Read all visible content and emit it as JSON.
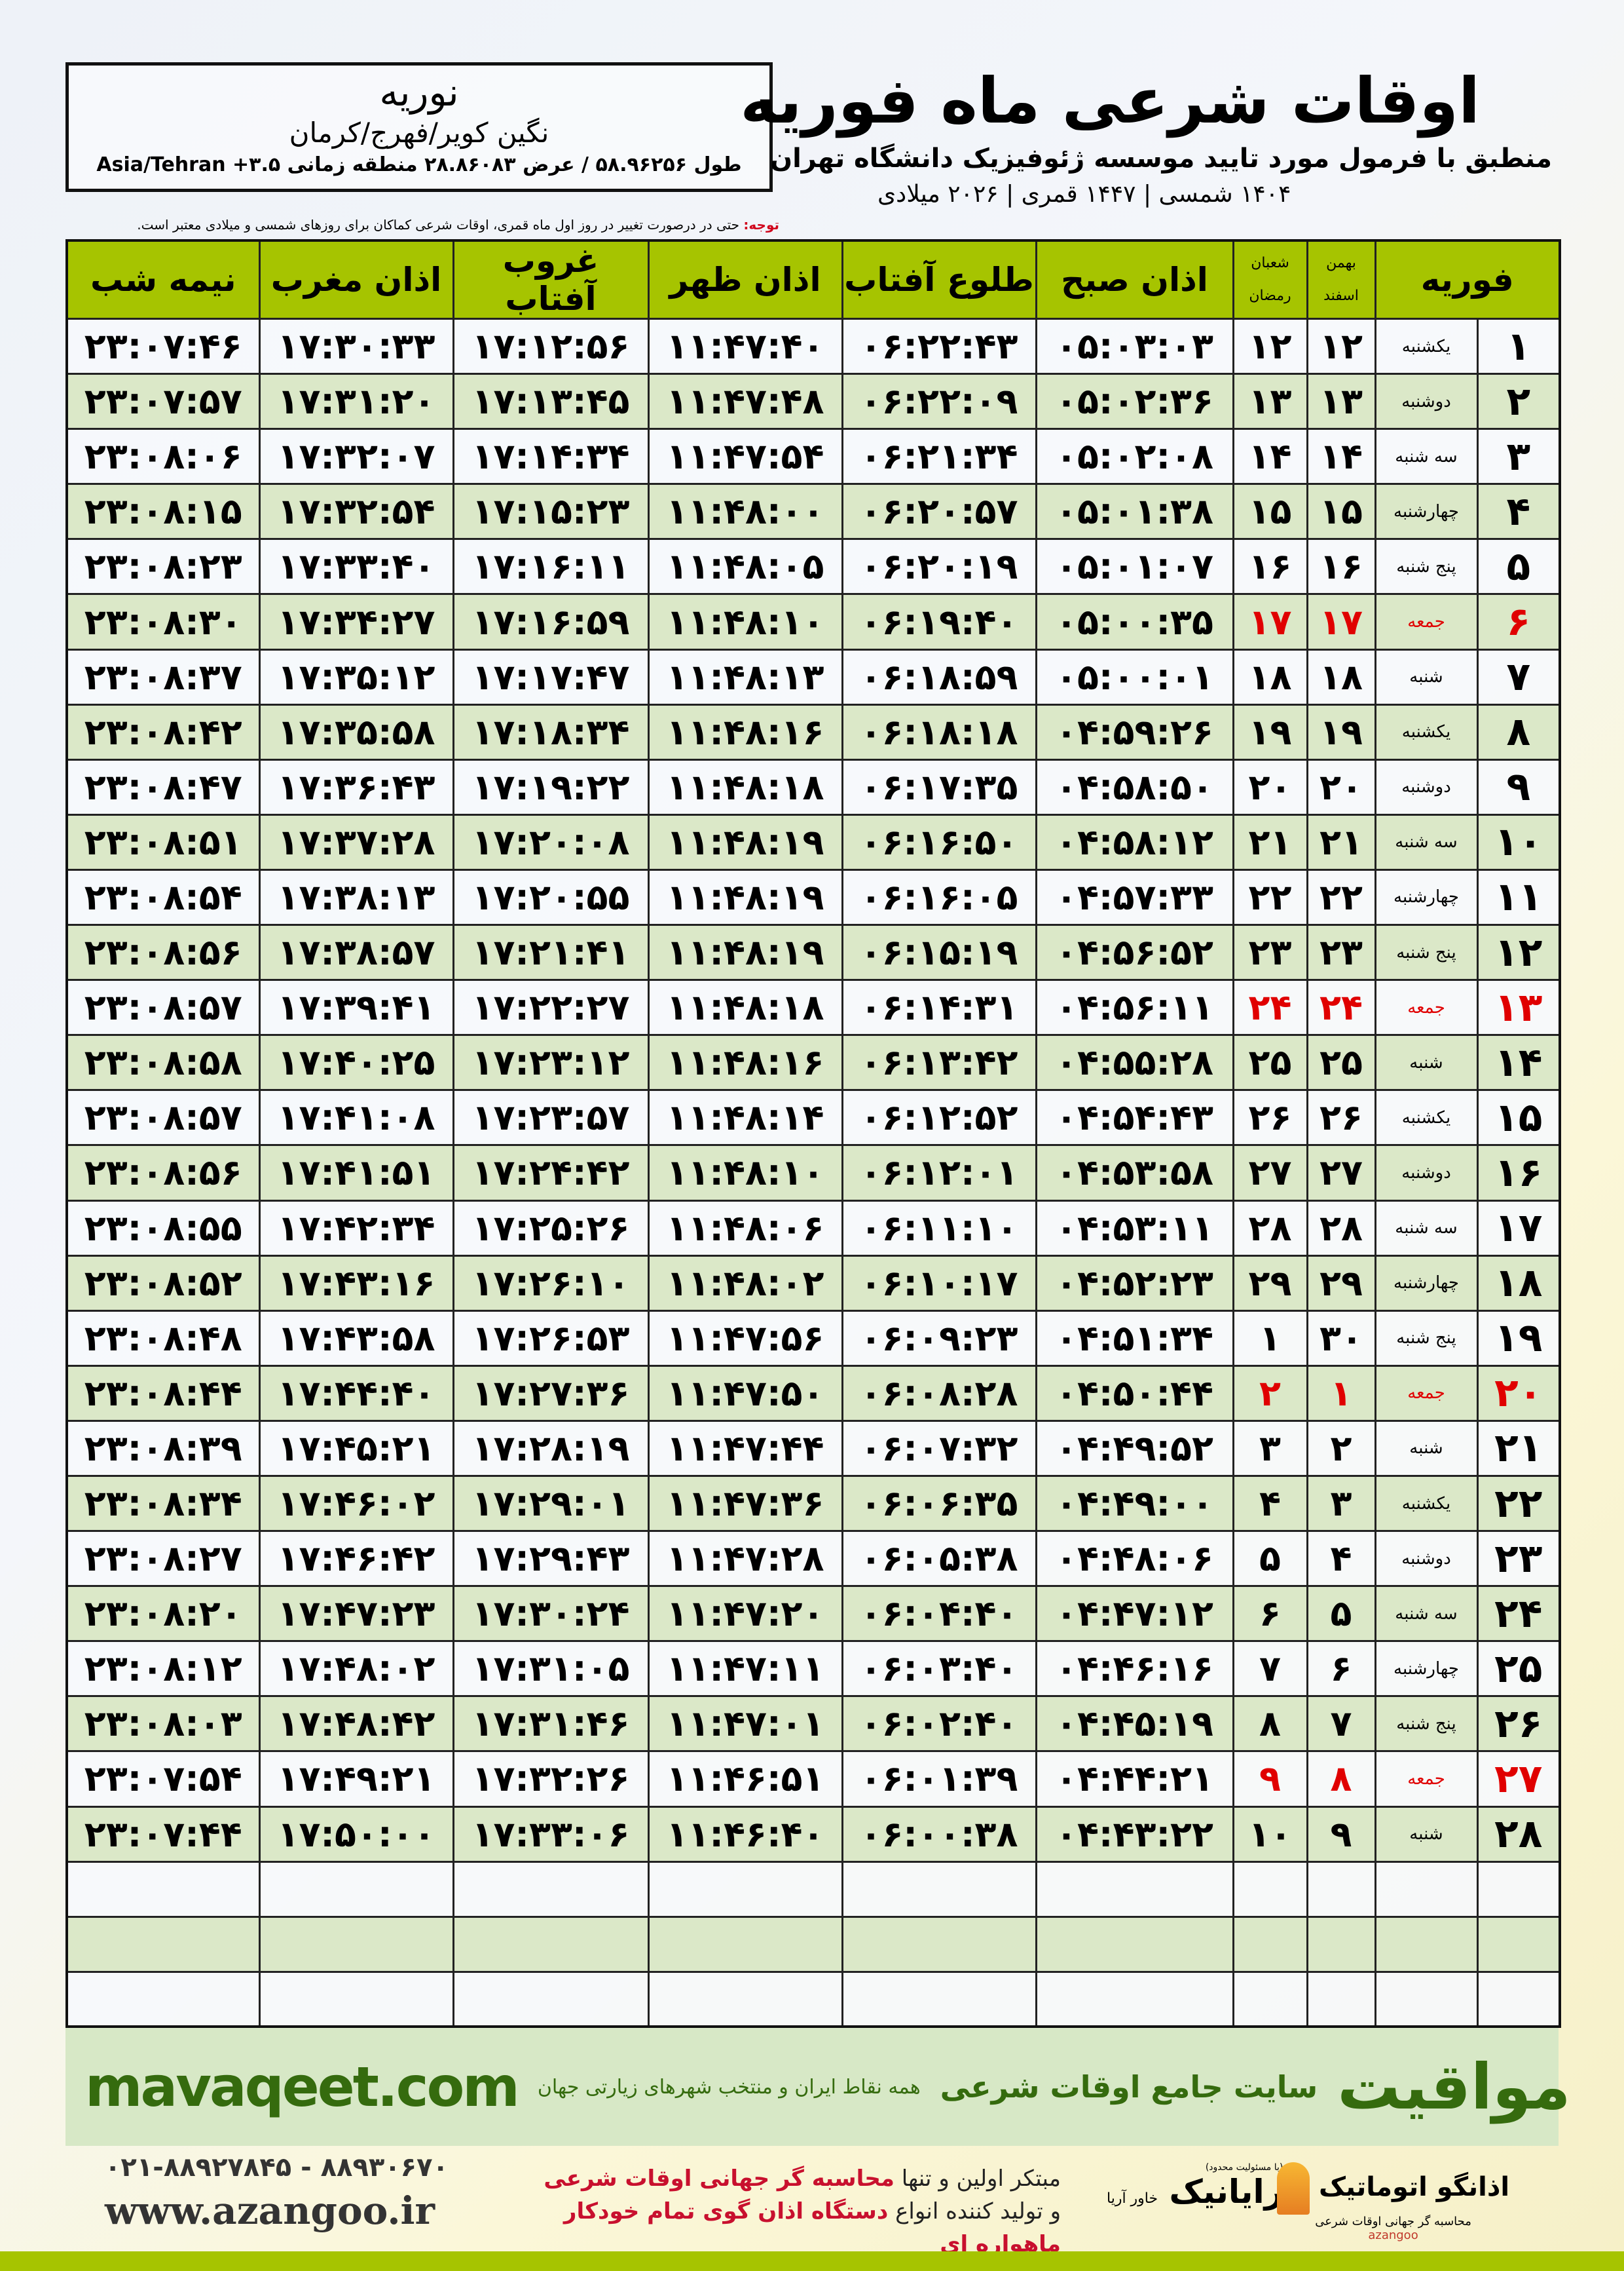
{
  "header": {
    "title": "اوقات شرعی ماه فوریه",
    "subtitle": "منطبق با فرمول مورد تایید موسسه ژئوفیزیک دانشگاه تهران",
    "years": "۱۴۰۴ شمسی | ۱۴۴۷ قمری | ۲۰۲۶ میلادی"
  },
  "location": {
    "city": "نوریه",
    "region": "نگین کویر/فهرج/کرمان",
    "coords": "طول ۵۸.۹۶۲۵۶ / عرض ۲۸.۸۶۰۸۳ منطقه زمانی ۳.۵+ Asia/Tehran"
  },
  "note": {
    "label": "توجه:",
    "text": " حتی در درصورت تغییر در روز اول ماه قمری، اوقات شرعی کماکان برای روزهای شمسی و میلادی معتبر است."
  },
  "colors": {
    "header": "#a6c400",
    "row_alt": "#dbe8c8",
    "holiday": "#e00000",
    "brand": "#356b0e"
  },
  "table": {
    "headers": {
      "month": "فوریه",
      "solar_top": "بهمن",
      "solar_bottom": "اسفند",
      "lunar_top": "شعبان",
      "lunar_bottom": "رمضان",
      "fajr": "اذان صبح",
      "sunrise": "طلوع آفتاب",
      "dhuhr": "اذان ظهر",
      "sunset": "غروب آفتاب",
      "maghrib": "اذان مغرب",
      "midnight": "نیمه شب"
    },
    "rows": [
      {
        "day": "۱",
        "weekday": "یکشنبه",
        "solar": "۱۲",
        "lunar": "۱۲",
        "fajr": "۰۵:۰۳:۰۳",
        "sunrise": "۰۶:۲۲:۴۳",
        "dhuhr": "۱۱:۴۷:۴۰",
        "sunset": "۱۷:۱۲:۵۶",
        "maghrib": "۱۷:۳۰:۳۳",
        "midnight": "۲۳:۰۷:۴۶",
        "holiday": false
      },
      {
        "day": "۲",
        "weekday": "دوشنبه",
        "solar": "۱۳",
        "lunar": "۱۳",
        "fajr": "۰۵:۰۲:۳۶",
        "sunrise": "۰۶:۲۲:۰۹",
        "dhuhr": "۱۱:۴۷:۴۸",
        "sunset": "۱۷:۱۳:۴۵",
        "maghrib": "۱۷:۳۱:۲۰",
        "midnight": "۲۳:۰۷:۵۷",
        "holiday": false
      },
      {
        "day": "۳",
        "weekday": "سه شنبه",
        "solar": "۱۴",
        "lunar": "۱۴",
        "fajr": "۰۵:۰۲:۰۸",
        "sunrise": "۰۶:۲۱:۳۴",
        "dhuhr": "۱۱:۴۷:۵۴",
        "sunset": "۱۷:۱۴:۳۴",
        "maghrib": "۱۷:۳۲:۰۷",
        "midnight": "۲۳:۰۸:۰۶",
        "holiday": false
      },
      {
        "day": "۴",
        "weekday": "چهارشنبه",
        "solar": "۱۵",
        "lunar": "۱۵",
        "fajr": "۰۵:۰۱:۳۸",
        "sunrise": "۰۶:۲۰:۵۷",
        "dhuhr": "۱۱:۴۸:۰۰",
        "sunset": "۱۷:۱۵:۲۳",
        "maghrib": "۱۷:۳۲:۵۴",
        "midnight": "۲۳:۰۸:۱۵",
        "holiday": false
      },
      {
        "day": "۵",
        "weekday": "پنج شنبه",
        "solar": "۱۶",
        "lunar": "۱۶",
        "fajr": "۰۵:۰۱:۰۷",
        "sunrise": "۰۶:۲۰:۱۹",
        "dhuhr": "۱۱:۴۸:۰۵",
        "sunset": "۱۷:۱۶:۱۱",
        "maghrib": "۱۷:۳۳:۴۰",
        "midnight": "۲۳:۰۸:۲۳",
        "holiday": false
      },
      {
        "day": "۶",
        "weekday": "جمعه",
        "solar": "۱۷",
        "lunar": "۱۷",
        "fajr": "۰۵:۰۰:۳۵",
        "sunrise": "۰۶:۱۹:۴۰",
        "dhuhr": "۱۱:۴۸:۱۰",
        "sunset": "۱۷:۱۶:۵۹",
        "maghrib": "۱۷:۳۴:۲۷",
        "midnight": "۲۳:۰۸:۳۰",
        "holiday": true
      },
      {
        "day": "۷",
        "weekday": "شنبه",
        "solar": "۱۸",
        "lunar": "۱۸",
        "fajr": "۰۵:۰۰:۰۱",
        "sunrise": "۰۶:۱۸:۵۹",
        "dhuhr": "۱۱:۴۸:۱۳",
        "sunset": "۱۷:۱۷:۴۷",
        "maghrib": "۱۷:۳۵:۱۲",
        "midnight": "۲۳:۰۸:۳۷",
        "holiday": false
      },
      {
        "day": "۸",
        "weekday": "یکشنبه",
        "solar": "۱۹",
        "lunar": "۱۹",
        "fajr": "۰۴:۵۹:۲۶",
        "sunrise": "۰۶:۱۸:۱۸",
        "dhuhr": "۱۱:۴۸:۱۶",
        "sunset": "۱۷:۱۸:۳۴",
        "maghrib": "۱۷:۳۵:۵۸",
        "midnight": "۲۳:۰۸:۴۲",
        "holiday": false
      },
      {
        "day": "۹",
        "weekday": "دوشنبه",
        "solar": "۲۰",
        "lunar": "۲۰",
        "fajr": "۰۴:۵۸:۵۰",
        "sunrise": "۰۶:۱۷:۳۵",
        "dhuhr": "۱۱:۴۸:۱۸",
        "sunset": "۱۷:۱۹:۲۲",
        "maghrib": "۱۷:۳۶:۴۳",
        "midnight": "۲۳:۰۸:۴۷",
        "holiday": false
      },
      {
        "day": "۱۰",
        "weekday": "سه شنبه",
        "solar": "۲۱",
        "lunar": "۲۱",
        "fajr": "۰۴:۵۸:۱۲",
        "sunrise": "۰۶:۱۶:۵۰",
        "dhuhr": "۱۱:۴۸:۱۹",
        "sunset": "۱۷:۲۰:۰۸",
        "maghrib": "۱۷:۳۷:۲۸",
        "midnight": "۲۳:۰۸:۵۱",
        "holiday": false
      },
      {
        "day": "۱۱",
        "weekday": "چهارشنبه",
        "solar": "۲۲",
        "lunar": "۲۲",
        "fajr": "۰۴:۵۷:۳۳",
        "sunrise": "۰۶:۱۶:۰۵",
        "dhuhr": "۱۱:۴۸:۱۹",
        "sunset": "۱۷:۲۰:۵۵",
        "maghrib": "۱۷:۳۸:۱۳",
        "midnight": "۲۳:۰۸:۵۴",
        "holiday": false
      },
      {
        "day": "۱۲",
        "weekday": "پنج شنبه",
        "solar": "۲۳",
        "lunar": "۲۳",
        "fajr": "۰۴:۵۶:۵۲",
        "sunrise": "۰۶:۱۵:۱۹",
        "dhuhr": "۱۱:۴۸:۱۹",
        "sunset": "۱۷:۲۱:۴۱",
        "maghrib": "۱۷:۳۸:۵۷",
        "midnight": "۲۳:۰۸:۵۶",
        "holiday": false
      },
      {
        "day": "۱۳",
        "weekday": "جمعه",
        "solar": "۲۴",
        "lunar": "۲۴",
        "fajr": "۰۴:۵۶:۱۱",
        "sunrise": "۰۶:۱۴:۳۱",
        "dhuhr": "۱۱:۴۸:۱۸",
        "sunset": "۱۷:۲۲:۲۷",
        "maghrib": "۱۷:۳۹:۴۱",
        "midnight": "۲۳:۰۸:۵۷",
        "holiday": true
      },
      {
        "day": "۱۴",
        "weekday": "شنبه",
        "solar": "۲۵",
        "lunar": "۲۵",
        "fajr": "۰۴:۵۵:۲۸",
        "sunrise": "۰۶:۱۳:۴۲",
        "dhuhr": "۱۱:۴۸:۱۶",
        "sunset": "۱۷:۲۳:۱۲",
        "maghrib": "۱۷:۴۰:۲۵",
        "midnight": "۲۳:۰۸:۵۸",
        "holiday": false
      },
      {
        "day": "۱۵",
        "weekday": "یکشنبه",
        "solar": "۲۶",
        "lunar": "۲۶",
        "fajr": "۰۴:۵۴:۴۳",
        "sunrise": "۰۶:۱۲:۵۲",
        "dhuhr": "۱۱:۴۸:۱۴",
        "sunset": "۱۷:۲۳:۵۷",
        "maghrib": "۱۷:۴۱:۰۸",
        "midnight": "۲۳:۰۸:۵۷",
        "holiday": false
      },
      {
        "day": "۱۶",
        "weekday": "دوشنبه",
        "solar": "۲۷",
        "lunar": "۲۷",
        "fajr": "۰۴:۵۳:۵۸",
        "sunrise": "۰۶:۱۲:۰۱",
        "dhuhr": "۱۱:۴۸:۱۰",
        "sunset": "۱۷:۲۴:۴۲",
        "maghrib": "۱۷:۴۱:۵۱",
        "midnight": "۲۳:۰۸:۵۶",
        "holiday": false
      },
      {
        "day": "۱۷",
        "weekday": "سه شنبه",
        "solar": "۲۸",
        "lunar": "۲۸",
        "fajr": "۰۴:۵۳:۱۱",
        "sunrise": "۰۶:۱۱:۱۰",
        "dhuhr": "۱۱:۴۸:۰۶",
        "sunset": "۱۷:۲۵:۲۶",
        "maghrib": "۱۷:۴۲:۳۴",
        "midnight": "۲۳:۰۸:۵۵",
        "holiday": false
      },
      {
        "day": "۱۸",
        "weekday": "چهارشنبه",
        "solar": "۲۹",
        "lunar": "۲۹",
        "fajr": "۰۴:۵۲:۲۳",
        "sunrise": "۰۶:۱۰:۱۷",
        "dhuhr": "۱۱:۴۸:۰۲",
        "sunset": "۱۷:۲۶:۱۰",
        "maghrib": "۱۷:۴۳:۱۶",
        "midnight": "۲۳:۰۸:۵۲",
        "holiday": false
      },
      {
        "day": "۱۹",
        "weekday": "پنج شنبه",
        "solar": "۳۰",
        "lunar": "۱",
        "fajr": "۰۴:۵۱:۳۴",
        "sunrise": "۰۶:۰۹:۲۳",
        "dhuhr": "۱۱:۴۷:۵۶",
        "sunset": "۱۷:۲۶:۵۳",
        "maghrib": "۱۷:۴۳:۵۸",
        "midnight": "۲۳:۰۸:۴۸",
        "holiday": false
      },
      {
        "day": "۲۰",
        "weekday": "جمعه",
        "solar": "۱",
        "lunar": "۲",
        "fajr": "۰۴:۵۰:۴۴",
        "sunrise": "۰۶:۰۸:۲۸",
        "dhuhr": "۱۱:۴۷:۵۰",
        "sunset": "۱۷:۲۷:۳۶",
        "maghrib": "۱۷:۴۴:۴۰",
        "midnight": "۲۳:۰۸:۴۴",
        "holiday": true
      },
      {
        "day": "۲۱",
        "weekday": "شنبه",
        "solar": "۲",
        "lunar": "۳",
        "fajr": "۰۴:۴۹:۵۲",
        "sunrise": "۰۶:۰۷:۳۲",
        "dhuhr": "۱۱:۴۷:۴۴",
        "sunset": "۱۷:۲۸:۱۹",
        "maghrib": "۱۷:۴۵:۲۱",
        "midnight": "۲۳:۰۸:۳۹",
        "holiday": false
      },
      {
        "day": "۲۲",
        "weekday": "یکشنبه",
        "solar": "۳",
        "lunar": "۴",
        "fajr": "۰۴:۴۹:۰۰",
        "sunrise": "۰۶:۰۶:۳۵",
        "dhuhr": "۱۱:۴۷:۳۶",
        "sunset": "۱۷:۲۹:۰۱",
        "maghrib": "۱۷:۴۶:۰۲",
        "midnight": "۲۳:۰۸:۳۴",
        "holiday": false
      },
      {
        "day": "۲۳",
        "weekday": "دوشنبه",
        "solar": "۴",
        "lunar": "۵",
        "fajr": "۰۴:۴۸:۰۶",
        "sunrise": "۰۶:۰۵:۳۸",
        "dhuhr": "۱۱:۴۷:۲۸",
        "sunset": "۱۷:۲۹:۴۳",
        "maghrib": "۱۷:۴۶:۴۲",
        "midnight": "۲۳:۰۸:۲۷",
        "holiday": false
      },
      {
        "day": "۲۴",
        "weekday": "سه شنبه",
        "solar": "۵",
        "lunar": "۶",
        "fajr": "۰۴:۴۷:۱۲",
        "sunrise": "۰۶:۰۴:۴۰",
        "dhuhr": "۱۱:۴۷:۲۰",
        "sunset": "۱۷:۳۰:۲۴",
        "maghrib": "۱۷:۴۷:۲۳",
        "midnight": "۲۳:۰۸:۲۰",
        "holiday": false
      },
      {
        "day": "۲۵",
        "weekday": "چهارشنبه",
        "solar": "۶",
        "lunar": "۷",
        "fajr": "۰۴:۴۶:۱۶",
        "sunrise": "۰۶:۰۳:۴۰",
        "dhuhr": "۱۱:۴۷:۱۱",
        "sunset": "۱۷:۳۱:۰۵",
        "maghrib": "۱۷:۴۸:۰۲",
        "midnight": "۲۳:۰۸:۱۲",
        "holiday": false
      },
      {
        "day": "۲۶",
        "weekday": "پنج شنبه",
        "solar": "۷",
        "lunar": "۸",
        "fajr": "۰۴:۴۵:۱۹",
        "sunrise": "۰۶:۰۲:۴۰",
        "dhuhr": "۱۱:۴۷:۰۱",
        "sunset": "۱۷:۳۱:۴۶",
        "maghrib": "۱۷:۴۸:۴۲",
        "midnight": "۲۳:۰۸:۰۳",
        "holiday": false
      },
      {
        "day": "۲۷",
        "weekday": "جمعه",
        "solar": "۸",
        "lunar": "۹",
        "fajr": "۰۴:۴۴:۲۱",
        "sunrise": "۰۶:۰۱:۳۹",
        "dhuhr": "۱۱:۴۶:۵۱",
        "sunset": "۱۷:۳۲:۲۶",
        "maghrib": "۱۷:۴۹:۲۱",
        "midnight": "۲۳:۰۷:۵۴",
        "holiday": true
      },
      {
        "day": "۲۸",
        "weekday": "شنبه",
        "solar": "۹",
        "lunar": "۱۰",
        "fajr": "۰۴:۴۳:۲۲",
        "sunrise": "۰۶:۰۰:۳۸",
        "dhuhr": "۱۱:۴۶:۴۰",
        "sunset": "۱۷:۳۳:۰۶",
        "maghrib": "۱۷:۵۰:۰۰",
        "midnight": "۲۳:۰۷:۴۴",
        "holiday": false
      }
    ]
  },
  "banner": {
    "brand": "مواقیت",
    "slogan": "سایت جامع اوقات شرعی",
    "tagline": "همه نقاط ایران و منتخب شهرهای زیارتی جهان",
    "site": "mavaqeet.com"
  },
  "footer": {
    "phone": "۰۲۱-۸۸۹۲۷۸۴۵ - ۸۸۹۳۰۶۷۰",
    "web": "www.azangoo.ir",
    "promo1_a": "مبتکر اولین و تنها ",
    "promo1_b": "محاسبه گر جهانی اوقات شرعی",
    "promo2_a": "و تولید کننده انواع ",
    "promo2_b": "دستگاه اذان گوی تمام خودکار ماهواره ای",
    "logo1": "رایانیک",
    "logo1_sub": "خاور آریا",
    "logo1_note": "(با مسئولیت محدود)",
    "logo2": "اذانگو اتوماتیک",
    "logo2_sub": "محاسبه گر جهانی اوقات شرعی",
    "logo2_en": "azangoo"
  }
}
